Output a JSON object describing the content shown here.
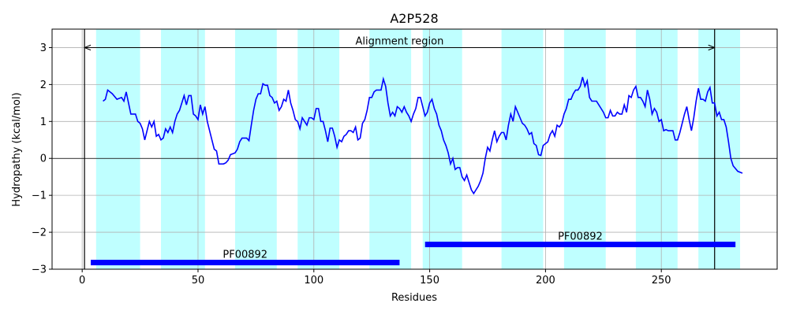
{
  "chart_data": {
    "type": "line",
    "title": "A2P528",
    "xlabel": "Residues",
    "ylabel": "Hydropathy (kcal/mol)",
    "xlim": [
      -13,
      300
    ],
    "ylim": [
      -3,
      3.5
    ],
    "xticks": [
      0,
      50,
      100,
      150,
      200,
      250
    ],
    "yticks": [
      {
        "value": -3,
        "label": "−3"
      },
      {
        "value": -2,
        "label": "−2"
      },
      {
        "value": -1,
        "label": "−1"
      },
      0,
      1,
      2,
      3
    ],
    "grid": true,
    "hline": 0,
    "color": "#0000ff",
    "region_color": "#bfffff",
    "regions": [
      [
        6,
        25
      ],
      [
        34,
        53
      ],
      [
        66,
        84
      ],
      [
        93,
        111
      ],
      [
        124,
        142
      ],
      [
        147,
        164
      ],
      [
        181,
        199
      ],
      [
        208,
        226
      ],
      [
        239,
        257
      ],
      [
        266,
        284
      ]
    ],
    "alignment": {
      "text": "Alignment region",
      "start": 1,
      "end": 273,
      "y": 3
    },
    "domains": [
      {
        "label": "PF00892",
        "start": 3.7,
        "end": 137,
        "y": -2.82
      },
      {
        "label": "PF00892",
        "start": 148,
        "end": 282,
        "y": -2.33
      }
    ],
    "x": [
      9,
      10,
      11,
      13,
      15,
      17,
      18,
      19,
      20,
      21,
      23,
      24,
      25,
      26,
      27,
      28,
      29,
      30,
      31,
      32,
      33,
      34,
      35,
      36,
      37,
      38,
      39,
      40,
      41,
      42,
      43,
      44,
      45,
      46,
      47,
      48,
      49,
      50,
      51,
      52,
      53,
      54,
      56,
      57,
      58,
      59,
      61,
      62,
      63,
      64,
      66,
      67,
      68,
      69,
      71,
      72,
      73,
      74,
      75,
      76,
      77,
      78,
      79,
      80,
      81,
      82,
      83,
      84,
      85,
      86,
      87,
      88,
      89,
      90,
      91,
      92,
      93,
      94,
      95,
      96,
      97,
      98,
      99,
      100,
      101,
      102,
      103,
      104,
      105,
      106,
      107,
      108,
      109,
      110,
      111,
      112,
      113,
      114,
      115,
      116,
      117,
      118,
      119,
      120,
      121,
      122,
      123,
      124,
      125,
      126,
      127,
      128,
      129,
      130,
      131,
      132,
      133,
      134,
      135,
      136,
      137,
      138,
      139,
      140,
      141,
      142,
      143,
      144,
      145,
      146,
      147,
      148,
      149,
      150,
      151,
      152,
      153,
      154,
      155,
      156,
      157,
      158,
      159,
      160,
      161,
      162,
      163,
      164,
      165,
      166,
      167,
      168,
      169,
      170,
      171,
      172,
      173,
      174,
      175,
      176,
      177,
      178,
      179,
      180,
      181,
      182,
      183,
      184,
      185,
      186,
      187,
      188,
      189,
      190,
      191,
      192,
      193,
      194,
      195,
      196,
      197,
      198,
      199,
      200,
      201,
      202,
      203,
      204,
      205,
      206,
      207,
      208,
      209,
      210,
      211,
      212,
      213,
      214,
      215,
      216,
      217,
      218,
      219,
      220,
      221,
      222,
      223,
      224,
      225,
      226,
      227,
      228,
      229,
      230,
      231,
      232,
      233,
      234,
      235,
      236,
      237,
      238,
      239,
      240,
      241,
      242,
      243,
      244,
      245,
      246,
      247,
      248,
      249,
      250,
      251,
      252,
      253,
      254,
      255,
      256,
      257,
      258,
      259,
      260,
      261,
      262,
      263,
      264,
      265,
      266,
      267,
      268,
      269,
      270,
      271,
      272,
      273,
      274,
      275,
      276,
      277,
      278,
      279,
      280,
      281,
      283,
      285
    ],
    "values": [
      1.55,
      1.6,
      1.85,
      1.75,
      1.6,
      1.65,
      1.55,
      1.8,
      1.5,
      1.2,
      1.2,
      1.0,
      0.95,
      0.8,
      0.5,
      0.75,
      1.0,
      0.85,
      1.0,
      0.6,
      0.65,
      0.5,
      0.55,
      0.8,
      0.7,
      0.85,
      0.7,
      1.0,
      1.2,
      1.3,
      1.5,
      1.7,
      1.45,
      1.7,
      1.7,
      1.2,
      1.15,
      1.05,
      1.45,
      1.2,
      1.4,
      1.0,
      0.5,
      0.25,
      0.2,
      -0.15,
      -0.15,
      -0.12,
      -0.05,
      0.1,
      0.15,
      0.25,
      0.45,
      0.55,
      0.55,
      0.48,
      0.9,
      1.3,
      1.6,
      1.75,
      1.75,
      2.02,
      1.98,
      1.98,
      1.7,
      1.65,
      1.5,
      1.55,
      1.3,
      1.4,
      1.6,
      1.55,
      1.85,
      1.5,
      1.3,
      1.05,
      1.0,
      0.8,
      1.1,
      1.0,
      0.9,
      1.1,
      1.1,
      1.05,
      1.35,
      1.35,
      1.0,
      1.0,
      0.75,
      0.45,
      0.82,
      0.82,
      0.6,
      0.3,
      0.5,
      0.45,
      0.6,
      0.65,
      0.75,
      0.75,
      0.7,
      0.85,
      0.5,
      0.55,
      0.95,
      1.05,
      1.3,
      1.65,
      1.65,
      1.8,
      1.85,
      1.85,
      1.85,
      2.15,
      1.95,
      1.5,
      1.15,
      1.25,
      1.15,
      1.4,
      1.35,
      1.25,
      1.4,
      1.25,
      1.15,
      1.0,
      1.2,
      1.35,
      1.65,
      1.65,
      1.4,
      1.15,
      1.25,
      1.5,
      1.6,
      1.35,
      1.2,
      0.9,
      0.75,
      0.5,
      0.35,
      0.15,
      -0.15,
      0.0,
      -0.3,
      -0.25,
      -0.25,
      -0.5,
      -0.6,
      -0.45,
      -0.65,
      -0.85,
      -0.95,
      -0.85,
      -0.75,
      -0.6,
      -0.4,
      0.0,
      0.3,
      0.2,
      0.5,
      0.75,
      0.45,
      0.6,
      0.7,
      0.7,
      0.5,
      0.9,
      1.2,
      1.0,
      1.4,
      1.25,
      1.1,
      0.95,
      0.9,
      0.8,
      0.65,
      0.7,
      0.4,
      0.35,
      0.1,
      0.08,
      0.35,
      0.4,
      0.45,
      0.65,
      0.75,
      0.6,
      0.9,
      0.85,
      0.95,
      1.2,
      1.35,
      1.6,
      1.6,
      1.75,
      1.85,
      1.85,
      1.95,
      2.2,
      1.95,
      2.1,
      1.65,
      1.55,
      1.55,
      1.55,
      1.45,
      1.35,
      1.25,
      1.1,
      1.1,
      1.3,
      1.15,
      1.15,
      1.25,
      1.2,
      1.2,
      1.45,
      1.25,
      1.7,
      1.65,
      1.85,
      1.95,
      1.65,
      1.65,
      1.55,
      1.4,
      1.85,
      1.6,
      1.2,
      1.35,
      1.25,
      1.0,
      1.05,
      0.75,
      0.78,
      0.75,
      0.75,
      0.75,
      0.5,
      0.5,
      0.7,
      0.95,
      1.2,
      1.4,
      1.05,
      0.75,
      1.1,
      1.55,
      1.9,
      1.6,
      1.6,
      1.55,
      1.8,
      1.92,
      1.5,
      1.5,
      1.15,
      1.25,
      1.05,
      1.05,
      0.85,
      0.45,
      0.0,
      -0.2,
      -0.35,
      -0.4
    ]
  }
}
